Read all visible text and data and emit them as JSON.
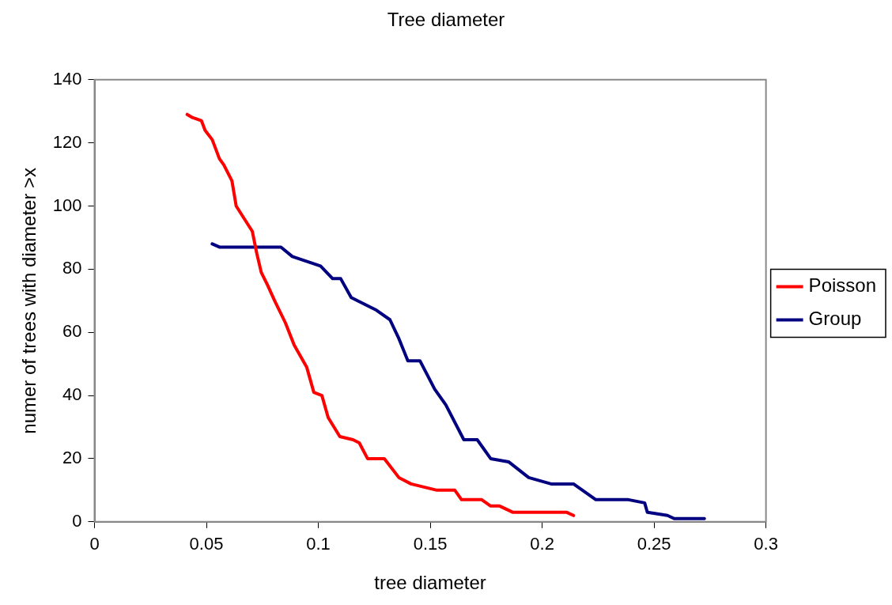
{
  "chart_data": {
    "type": "line",
    "title": "Tree diameter",
    "xlabel": "tree diameter",
    "ylabel": "numer of trees with diameter >x",
    "xlim": [
      0,
      0.3
    ],
    "xticks": [
      0,
      0.05,
      0.1,
      0.15,
      0.2,
      0.25,
      0.3
    ],
    "ylim": [
      0,
      140
    ],
    "yticks": [
      0,
      20,
      40,
      60,
      80,
      100,
      120,
      140
    ],
    "grid": false,
    "legend": "right",
    "marker": "none",
    "line_style": "solid",
    "series": [
      {
        "name": "Poisson",
        "color": "#ff0000",
        "x": [
          0.0414,
          0.0438,
          0.0478,
          0.0494,
          0.0526,
          0.0558,
          0.0578,
          0.0614,
          0.0633,
          0.0669,
          0.0705,
          0.0725,
          0.0745,
          0.0773,
          0.0805,
          0.0853,
          0.0892,
          0.0948,
          0.098,
          0.1016,
          0.1044,
          0.1096,
          0.1155,
          0.1183,
          0.122,
          0.1295,
          0.136,
          0.1414,
          0.153,
          0.161,
          0.164,
          0.173,
          0.177,
          0.181,
          0.187,
          0.211,
          0.214
        ],
        "values": [
          129,
          128,
          127,
          124,
          121,
          115,
          113,
          108,
          100,
          96,
          92,
          85,
          79,
          75,
          70,
          63,
          56,
          49,
          41,
          40,
          33,
          27,
          26,
          25,
          20,
          20,
          14,
          12,
          10,
          10,
          7,
          7,
          5,
          5,
          3,
          3,
          2
        ]
      },
      {
        "name": "Group",
        "color": "#000080",
        "x": [
          0.0526,
          0.0558,
          0.0833,
          0.0884,
          0.101,
          0.1064,
          0.11,
          0.1147,
          0.126,
          0.132,
          0.136,
          0.14,
          0.1454,
          0.152,
          0.157,
          0.165,
          0.171,
          0.177,
          0.185,
          0.194,
          0.204,
          0.214,
          0.224,
          0.2386,
          0.2458,
          0.247,
          0.256,
          0.259,
          0.2725
        ],
        "values": [
          88,
          87,
          87,
          84,
          81,
          77,
          77,
          71,
          67,
          64,
          58,
          51,
          51,
          42,
          37,
          26,
          26,
          20,
          19,
          14,
          12,
          12,
          7,
          7,
          6,
          3,
          2,
          1,
          1
        ]
      }
    ]
  }
}
